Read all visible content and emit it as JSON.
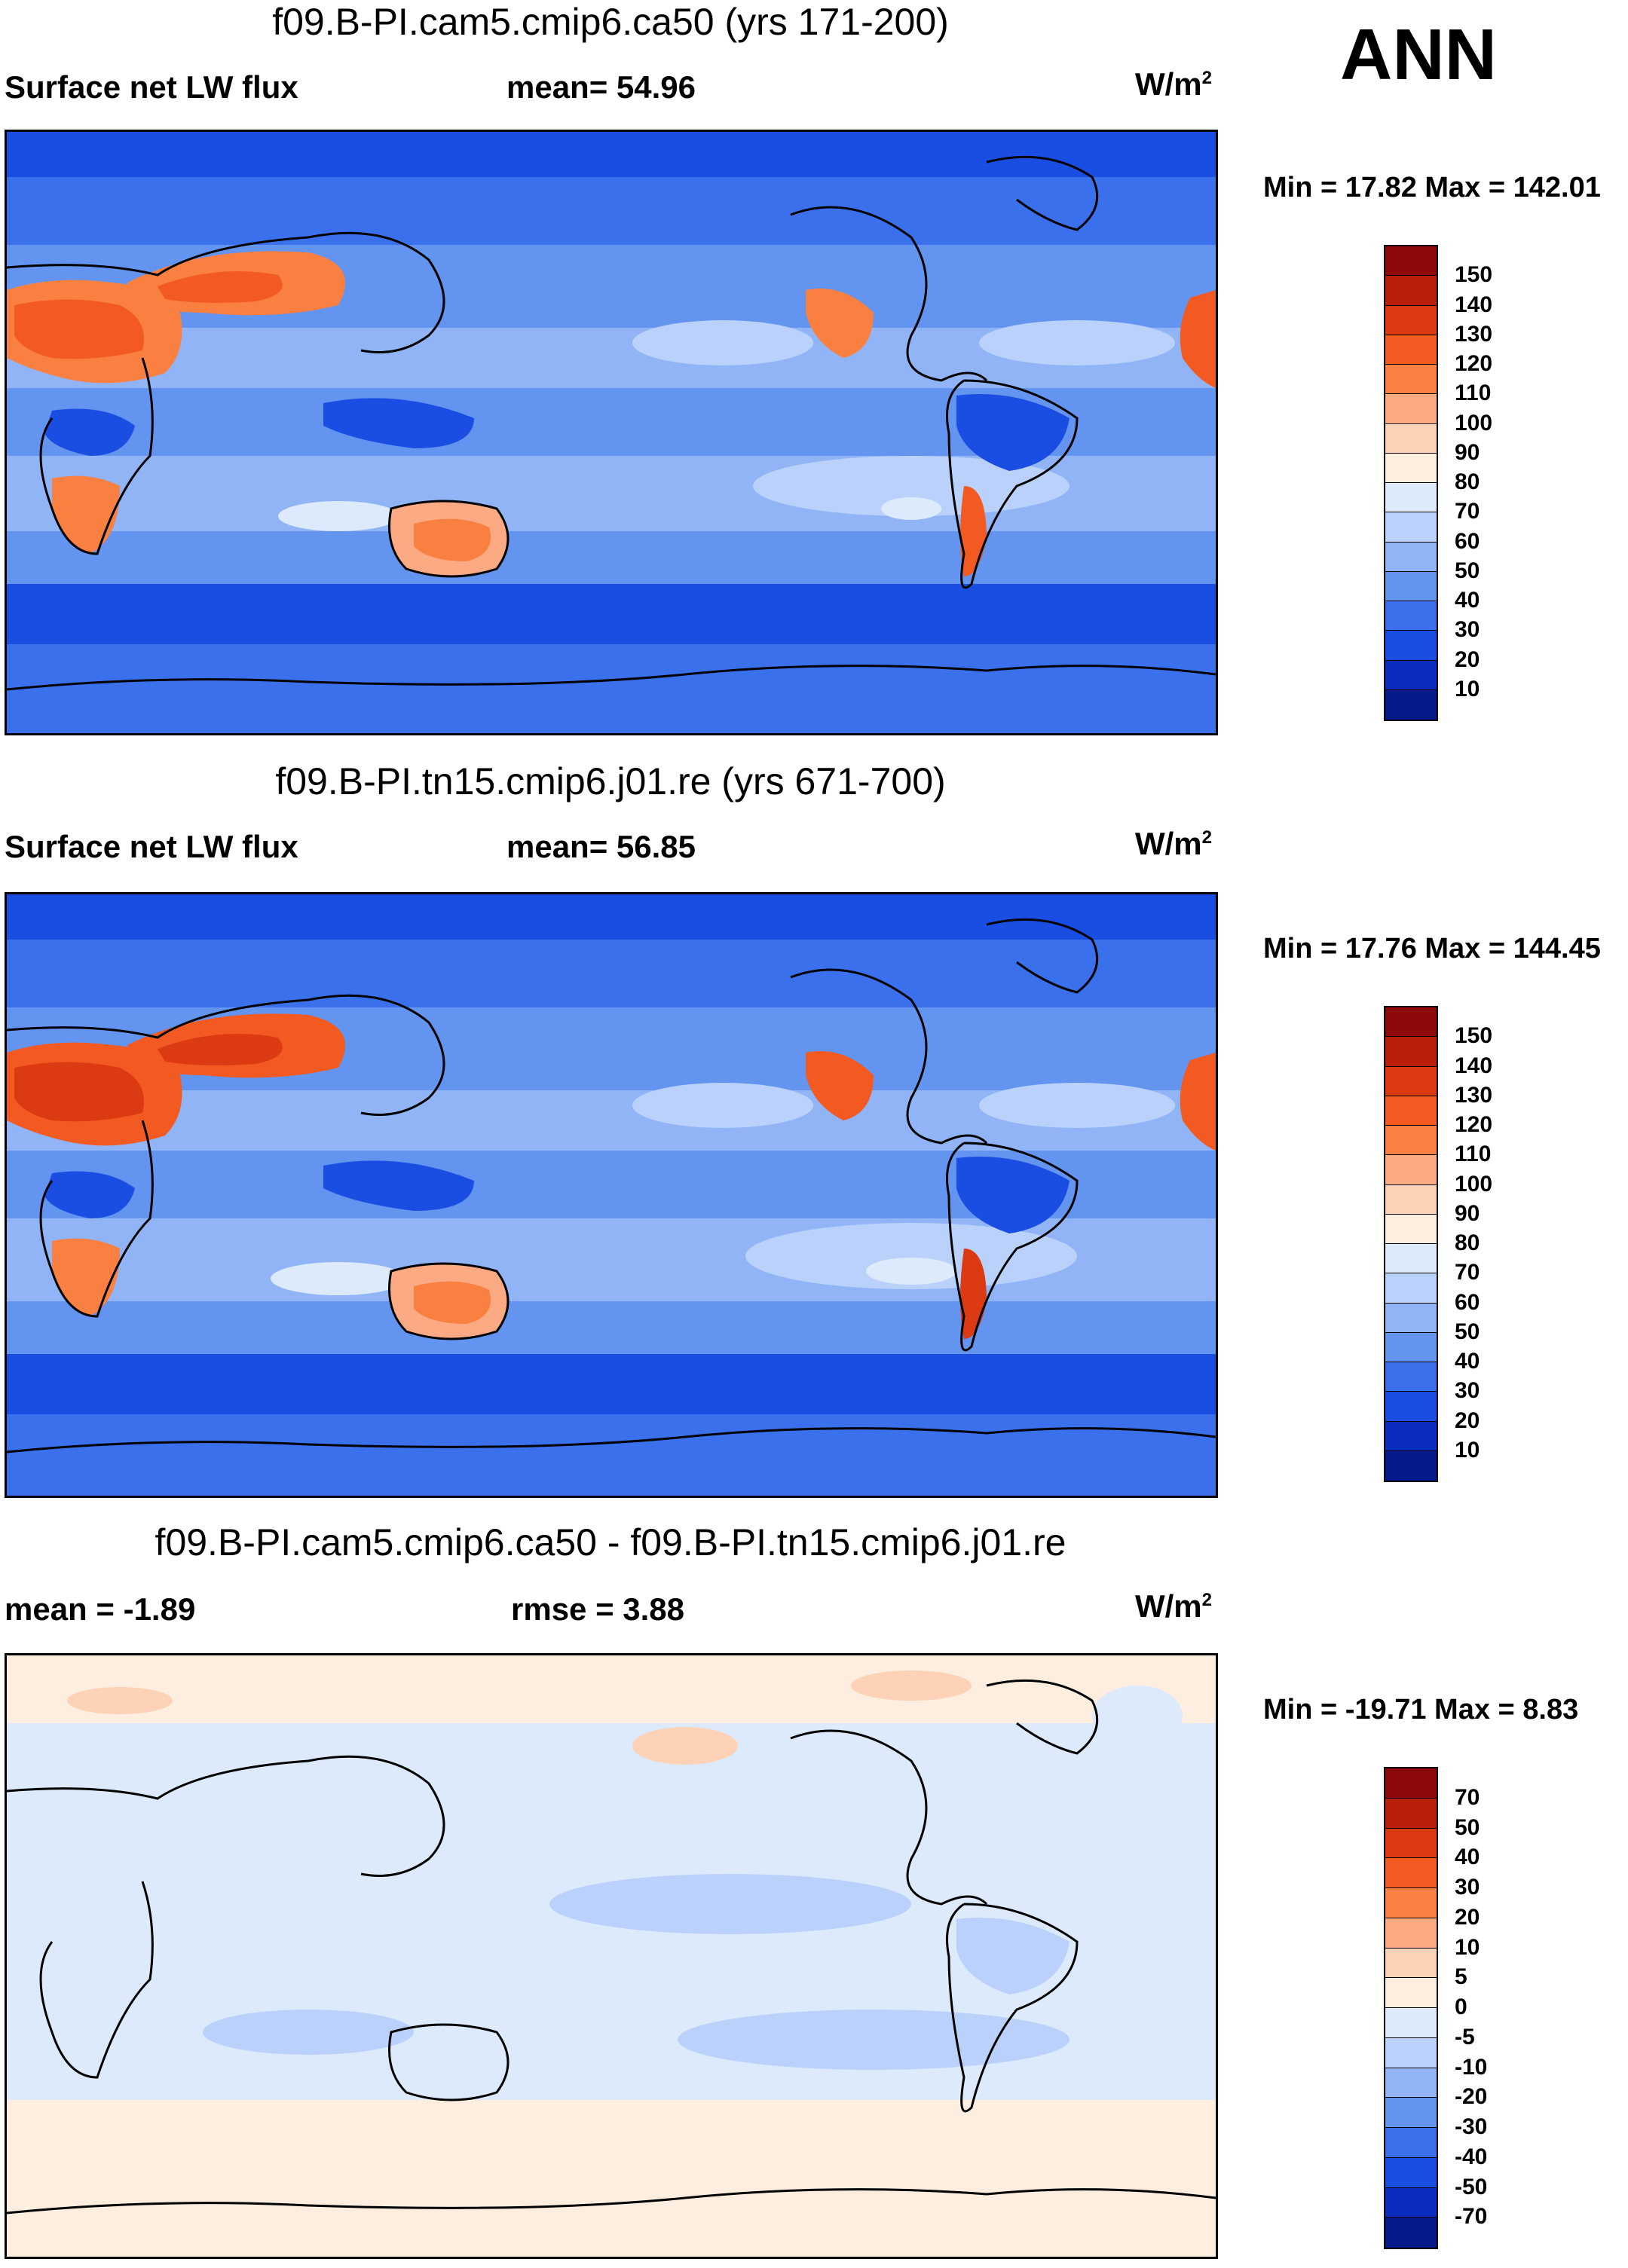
{
  "season": "ANN",
  "panels": [
    {
      "title": "f09.B-PI.cam5.cmip6.ca50 (yrs 171-200)",
      "left_label": "Surface net LW flux",
      "center_label": "mean=  54.96",
      "units": "W/m",
      "units_exp": "2",
      "minmax": "Min =  17.82 Max = 142.01",
      "colorbar_labels": [
        "150",
        "140",
        "130",
        "120",
        "110",
        "100",
        "90",
        "80",
        "70",
        "60",
        "50",
        "40",
        "30",
        "20",
        "10"
      ],
      "colorbar_colors": [
        "#8c0a0a",
        "#b91f0a",
        "#dc3a12",
        "#f25a22",
        "#f98040",
        "#fbaa84",
        "#fdd2b6",
        "#fdeee0",
        "#dceafc",
        "#bad2fb",
        "#90b4f6",
        "#6294f0",
        "#3a70ec",
        "#1a4ee2",
        "#0c2cbe",
        "#061a8a"
      ]
    },
    {
      "title": "f09.B-PI.tn15.cmip6.j01.re (yrs 671-700)",
      "left_label": "Surface net LW flux",
      "center_label": "mean=  56.85",
      "units": "W/m",
      "units_exp": "2",
      "minmax": "Min =  17.76 Max = 144.45",
      "colorbar_labels": [
        "150",
        "140",
        "130",
        "120",
        "110",
        "100",
        "90",
        "80",
        "70",
        "60",
        "50",
        "40",
        "30",
        "20",
        "10"
      ],
      "colorbar_colors": [
        "#8c0a0a",
        "#b91f0a",
        "#dc3a12",
        "#f25a22",
        "#f98040",
        "#fbaa84",
        "#fdd2b6",
        "#fdeee0",
        "#dceafc",
        "#bad2fb",
        "#90b4f6",
        "#6294f0",
        "#3a70ec",
        "#1a4ee2",
        "#0c2cbe",
        "#061a8a"
      ]
    },
    {
      "title": "f09.B-PI.cam5.cmip6.ca50 - f09.B-PI.tn15.cmip6.j01.re",
      "left_label": "mean =  -1.89",
      "center_label": "rmse =    3.88",
      "units": "W/m",
      "units_exp": "2",
      "minmax": "Min = -19.71 Max =   8.83",
      "colorbar_labels": [
        "70",
        "50",
        "40",
        "30",
        "20",
        "10",
        "5",
        "0",
        "-5",
        "-10",
        "-20",
        "-30",
        "-40",
        "-50",
        "-70"
      ],
      "colorbar_colors": [
        "#8c0a0a",
        "#b91f0a",
        "#dc3a12",
        "#f25a22",
        "#f98040",
        "#fbaa84",
        "#fdd2b6",
        "#fdeee0",
        "#dceafc",
        "#bad2fb",
        "#90b4f6",
        "#6294f0",
        "#3a70ec",
        "#1a4ee2",
        "#0c2cbe",
        "#061a8a"
      ]
    }
  ]
}
